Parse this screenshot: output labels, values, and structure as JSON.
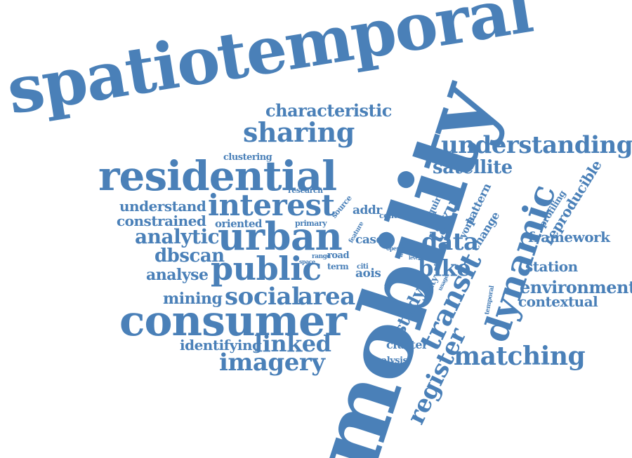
{
  "color": "#4a80b8",
  "words": {
    "spatiotemporal": "spatiotemporal",
    "mobility": "mobility",
    "characteristic": "characteristic",
    "sharing": "sharing",
    "understanding": "understanding",
    "residential": "residential",
    "satellite": "satellite",
    "dynamic": "dynamic",
    "reproducible": "reproducible",
    "clustering": "clustering",
    "research": "research",
    "understand": "understand",
    "interest": "interest",
    "source": "source",
    "addr": "addr",
    "context": "context",
    "acquire": "acquire",
    "taxus": "taxus",
    "pattern": "pattern",
    "profiling": "profiling",
    "constrained": "constrained",
    "oriented": "oriented",
    "primary": "primary",
    "feature": "feature",
    "york": "york",
    "change": "change",
    "analytic": "analytic",
    "urban": "urban",
    "case": "case",
    "data": "data",
    "framework": "framework",
    "dbscan": "dbscan",
    "open": "open",
    "work": "work",
    "level": "level",
    "range": "range",
    "road": "road",
    "term": "term",
    "space": "space",
    "public": "public",
    "bike": "bike",
    "transit": "transit",
    "station": "station",
    "analyse": "analyse",
    "citi": "citi",
    "aois": "aois",
    "proc": "proc",
    "city": "city",
    "usage": "usage",
    "temporal": "temporal",
    "environment": "environment",
    "mining": "mining",
    "social": "social",
    "area": "area",
    "study": "study",
    "contextual": "contextual",
    "consumer": "consumer",
    "register": "register",
    "identifying": "identifying",
    "linked": "linked",
    "cluster": "cluster",
    "matching": "matching",
    "imagery": "imagery",
    "analysis": "analysis"
  }
}
